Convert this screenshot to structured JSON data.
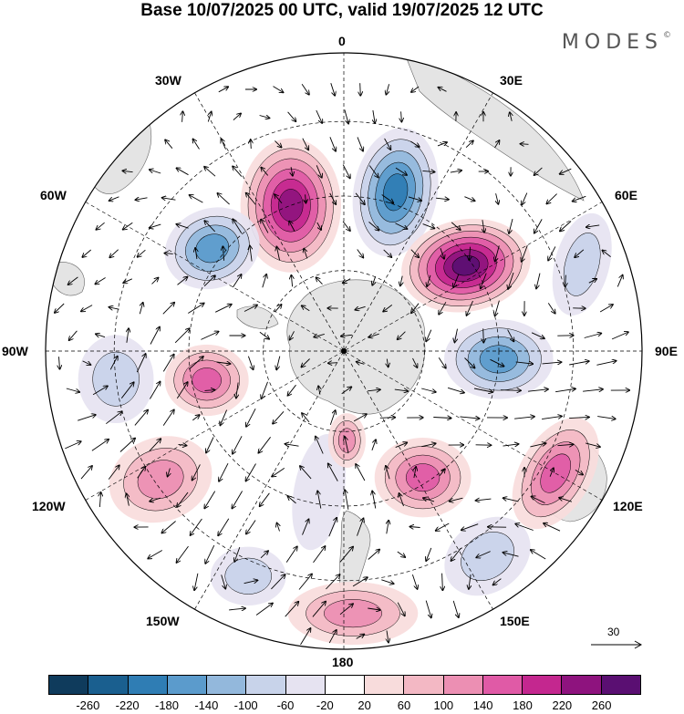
{
  "title": "Base 10/07/2025 00 UTC, valid 19/07/2025 12 UTC",
  "brand": "MODES",
  "brand_mark": "©",
  "lon_labels": {
    "n0": "0",
    "e30": "30E",
    "e60": "60E",
    "e90": "90E",
    "e120": "120E",
    "e150": "150E",
    "s180": "180",
    "w150": "150W",
    "w120": "120W",
    "w90": "90W",
    "w60": "60W",
    "w30": "30W"
  },
  "reference_vector": {
    "label": "30"
  },
  "colorbar": {
    "colors": [
      "#0f3b5c",
      "#1a5f8f",
      "#2f7db4",
      "#5b9bcc",
      "#93b8dc",
      "#c8d3ea",
      "#e6e3f1",
      "#ffffff",
      "#f8dcdc",
      "#f3b8c4",
      "#ec8fb3",
      "#e05aa6",
      "#c4278f",
      "#8e137e",
      "#5a0f72"
    ],
    "ticks": [
      "-260",
      "-220",
      "-180",
      "-140",
      "-100",
      "-60",
      "-20",
      "20",
      "60",
      "100",
      "140",
      "180",
      "220",
      "260"
    ]
  },
  "anomaly_centers": [
    {
      "sign": "positive",
      "level": 220,
      "bearing_deg": -20,
      "radius_frac": 0.52,
      "rx": 48,
      "ry": 64,
      "rot": 0
    },
    {
      "sign": "negative",
      "level": -220,
      "bearing_deg": 18,
      "radius_frac": 0.56,
      "rx": 40,
      "ry": 62,
      "rot": 10
    },
    {
      "sign": "negative",
      "level": -180,
      "bearing_deg": -52,
      "radius_frac": 0.56,
      "rx": 46,
      "ry": 38,
      "rot": -20
    },
    {
      "sign": "positive",
      "level": 260,
      "bearing_deg": 55,
      "radius_frac": 0.5,
      "rx": 62,
      "ry": 44,
      "rot": -10
    },
    {
      "sign": "negative",
      "level": -180,
      "bearing_deg": 93,
      "radius_frac": 0.52,
      "rx": 52,
      "ry": 38,
      "rot": 0
    },
    {
      "sign": "negative",
      "level": -100,
      "bearing_deg": 70,
      "radius_frac": 0.85,
      "rx": 26,
      "ry": 50,
      "rot": 15
    },
    {
      "sign": "positive",
      "level": 140,
      "bearing_deg": -102,
      "radius_frac": 0.47,
      "rx": 40,
      "ry": 34,
      "rot": 0
    },
    {
      "sign": "negative",
      "level": -100,
      "bearing_deg": -97,
      "radius_frac": 0.77,
      "rx": 36,
      "ry": 42,
      "rot": 0
    },
    {
      "sign": "positive",
      "level": 100,
      "bearing_deg": -125,
      "radius_frac": 0.75,
      "rx": 50,
      "ry": 40,
      "rot": -20
    },
    {
      "sign": "positive",
      "level": 140,
      "bearing_deg": 120,
      "radius_frac": 0.82,
      "rx": 34,
      "ry": 58,
      "rot": 30
    },
    {
      "sign": "positive",
      "level": 140,
      "bearing_deg": 148,
      "radius_frac": 0.5,
      "rx": 46,
      "ry": 38,
      "rot": 0
    },
    {
      "sign": "negative",
      "level": -100,
      "bearing_deg": 145,
      "radius_frac": 0.84,
      "rx": 44,
      "ry": 34,
      "rot": -35
    },
    {
      "sign": "positive",
      "level": 100,
      "bearing_deg": 178,
      "radius_frac": 0.88,
      "rx": 62,
      "ry": 30,
      "rot": 0
    },
    {
      "sign": "negative",
      "level": -100,
      "bearing_deg": -157,
      "radius_frac": 0.82,
      "rx": 36,
      "ry": 28,
      "rot": 0
    },
    {
      "sign": "negative",
      "level": -60,
      "bearing_deg": -170,
      "radius_frac": 0.48,
      "rx": 24,
      "ry": 56,
      "rot": 10
    },
    {
      "sign": "positive",
      "level": 100,
      "bearing_deg": 178,
      "radius_frac": 0.3,
      "rx": 18,
      "ry": 26,
      "rot": 0
    }
  ]
}
